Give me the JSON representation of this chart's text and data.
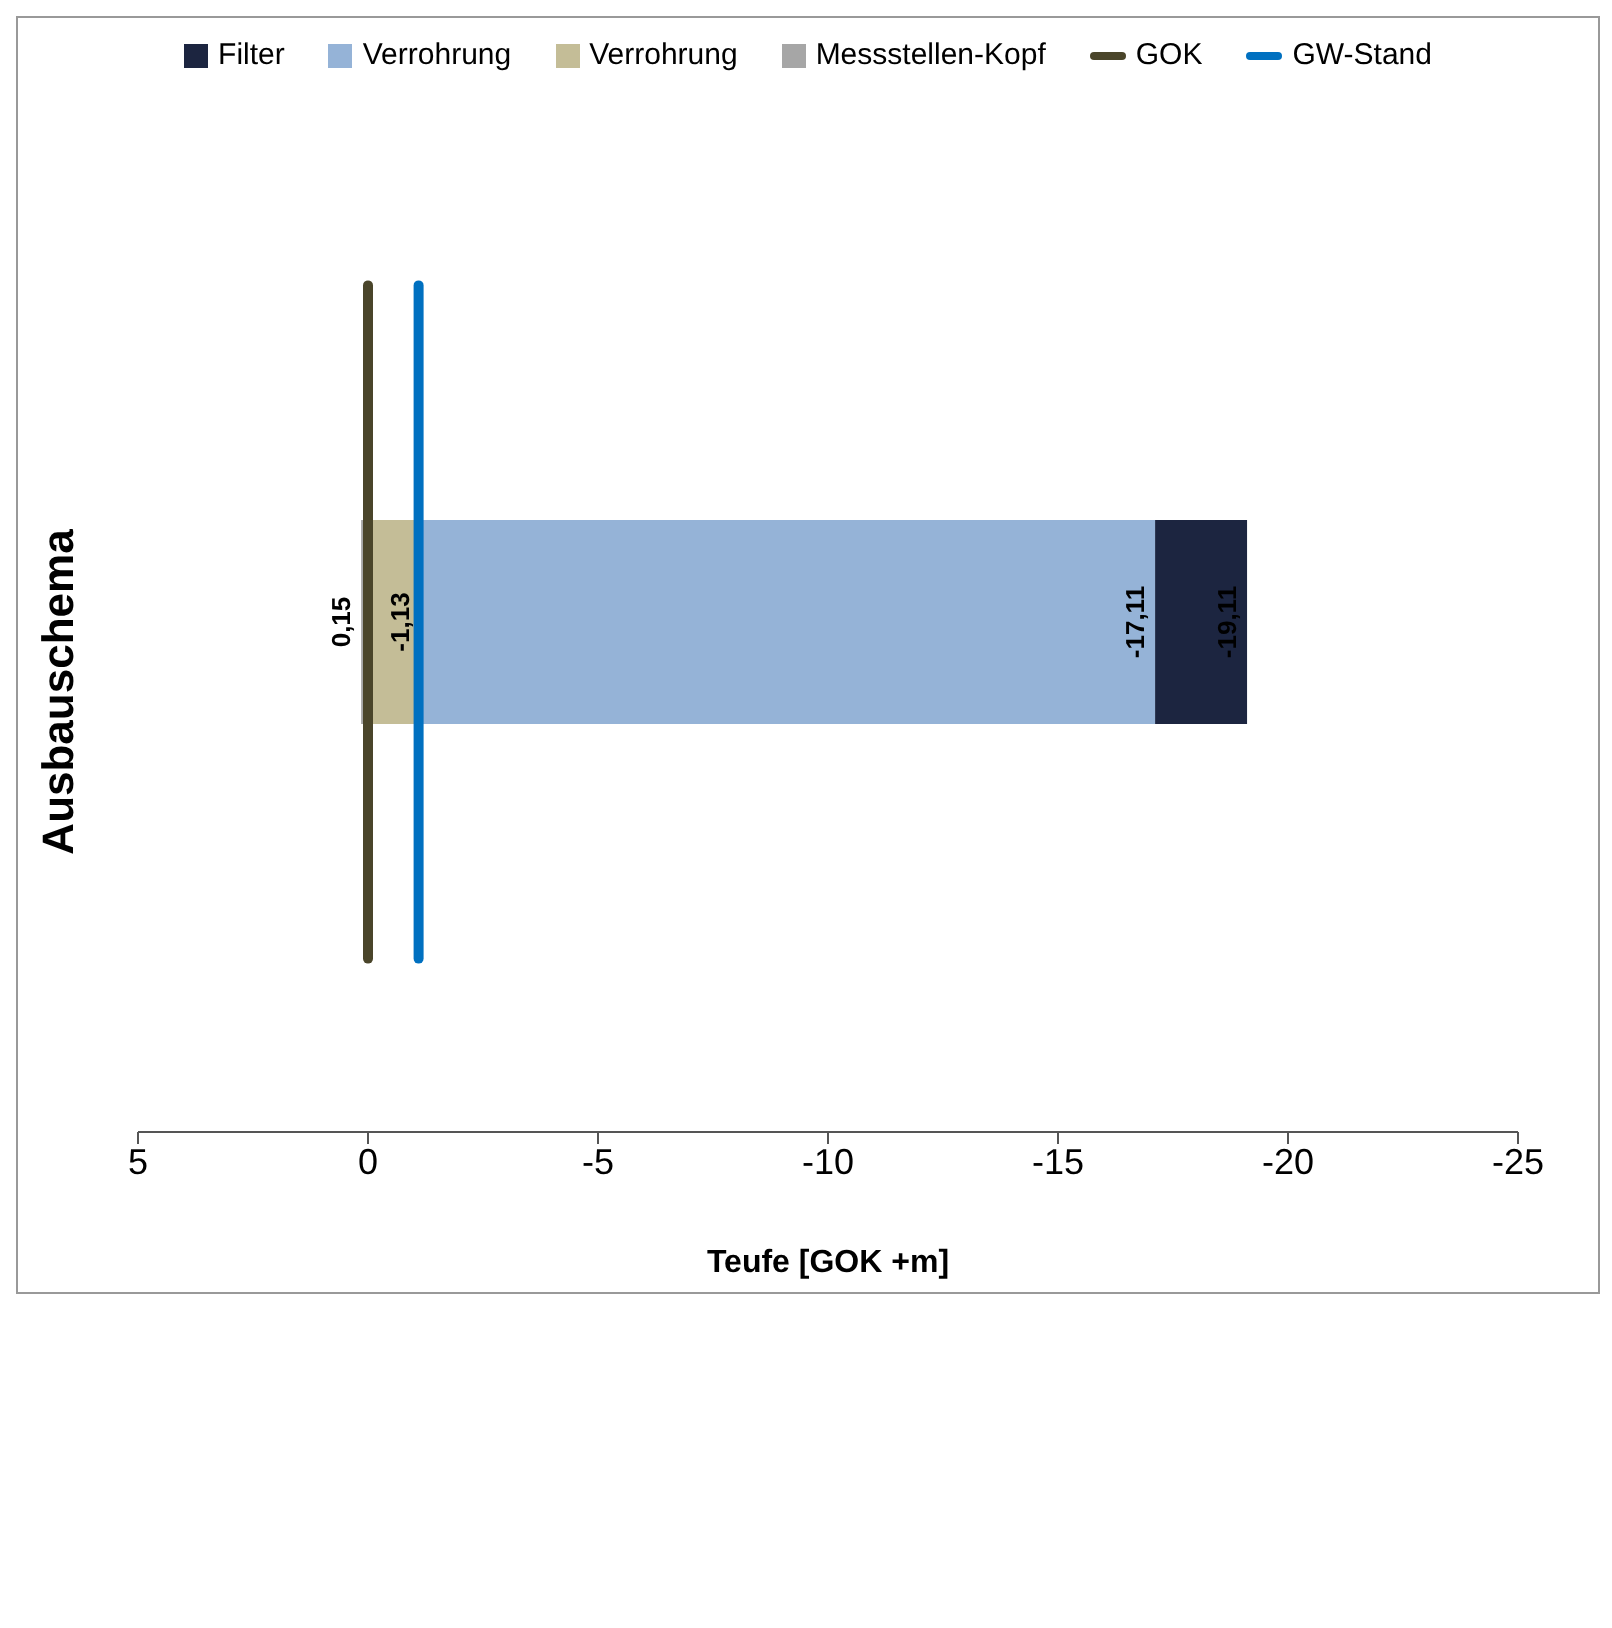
{
  "chart_data": {
    "type": "bar",
    "orientation": "horizontal",
    "title": "Ausbauschema",
    "xlabel": "Teufe  [GOK +m]",
    "categories": [
      null
    ],
    "series": [
      {
        "name": "Filter",
        "color": "#1c2540",
        "base": [
          -17.11
        ],
        "values": [
          -2
        ],
        "value_labels": [
          "-19,11"
        ]
      },
      {
        "name": "Verrohrung",
        "color": "#95b3d7",
        "base": [
          -1.13
        ],
        "values": [
          -15.98
        ],
        "value_labels": [
          "-17,11"
        ]
      },
      {
        "name": "Verrohrung",
        "color": "#c4bd97",
        "base": [
          0
        ],
        "values": [
          -1.13
        ],
        "value_labels": [
          "-1,13"
        ]
      },
      {
        "name": "Messstellen-Kopf",
        "color": "#a6a6a6",
        "base": [
          0
        ],
        "values": [
          0.15
        ],
        "value_labels": [
          "0,15"
        ]
      }
    ],
    "ref_lines": [
      {
        "axis": "x",
        "value": 0,
        "label": "GOK",
        "color": "#4a452a"
      },
      {
        "axis": "x",
        "value": -1.1,
        "label": "GW-Stand",
        "color": "#0070c0"
      }
    ],
    "xlim": [
      5,
      -25
    ],
    "xticks": [
      5,
      0,
      -5,
      -10,
      -15,
      -20,
      -25
    ],
    "grid": false,
    "legend": "top"
  }
}
